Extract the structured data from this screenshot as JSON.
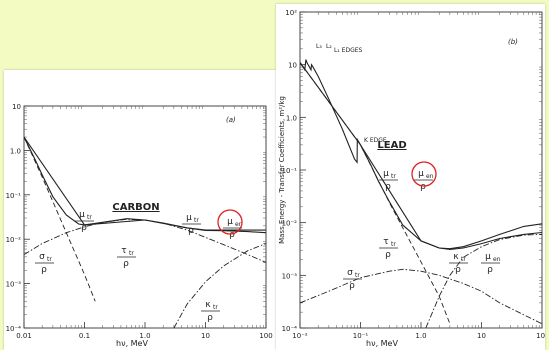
{
  "chart_data": [
    {
      "type": "line",
      "panel_label": "(a)",
      "chart_label": "CARBON",
      "xlabel": "hν, MeV",
      "x_scale": "log",
      "y_scale": "log",
      "xlim": [
        0.01,
        100
      ],
      "ylim": [
        0.0001,
        10
      ],
      "x_ticks": [
        {
          "value": 0.01,
          "label": "0.01"
        },
        {
          "value": 0.1,
          "label": "0.1"
        },
        {
          "value": 1,
          "label": "1.0"
        },
        {
          "value": 10,
          "label": "10"
        },
        {
          "value": 100,
          "label": "100"
        }
      ],
      "y_ticks": [
        {
          "value": 10,
          "label": "10"
        },
        {
          "value": 1,
          "label": "1.0"
        },
        {
          "value": 0.1,
          "label": "10⁻¹"
        },
        {
          "value": 0.01,
          "label": "10⁻²"
        },
        {
          "value": 0.001,
          "label": "10⁻³"
        },
        {
          "value": 0.0001,
          "label": "10⁻⁴"
        }
      ],
      "series": [
        {
          "name": "μtr/ρ",
          "style": "solid",
          "x": [
            0.01,
            0.015,
            0.02,
            0.03,
            0.05,
            0.08,
            0.1,
            0.2,
            0.5,
            1,
            2,
            5,
            10,
            20,
            50,
            100
          ],
          "y": [
            2.0,
            0.65,
            0.28,
            0.09,
            0.035,
            0.022,
            0.021,
            0.024,
            0.029,
            0.027,
            0.023,
            0.018,
            0.016,
            0.016,
            0.016,
            0.016
          ]
        },
        {
          "name": "μen/ρ",
          "style": "solid",
          "x": [
            0.01,
            0.1,
            1,
            5,
            10,
            20,
            50,
            100
          ],
          "y": [
            2.0,
            0.021,
            0.027,
            0.018,
            0.0158,
            0.0155,
            0.0148,
            0.014
          ]
        },
        {
          "name": "τtr/ρ",
          "style": "dashed",
          "x": [
            0.01,
            0.02,
            0.03,
            0.05,
            0.1,
            0.15
          ],
          "y": [
            2.0,
            0.25,
            0.07,
            0.014,
            0.0016,
            0.0004
          ]
        },
        {
          "name": "σtr/ρ",
          "style": "dashdot",
          "x": [
            0.01,
            0.02,
            0.05,
            0.1,
            0.2,
            0.5,
            1,
            2,
            5,
            10,
            20,
            50,
            100
          ],
          "y": [
            0.0045,
            0.008,
            0.014,
            0.019,
            0.024,
            0.028,
            0.027,
            0.023,
            0.016,
            0.011,
            0.0075,
            0.0045,
            0.003
          ]
        },
        {
          "name": "κtr/ρ",
          "style": "dashdot",
          "x": [
            3,
            5,
            10,
            20,
            50,
            100
          ],
          "y": [
            0.0001,
            0.00035,
            0.0011,
            0.0025,
            0.0055,
            0.008
          ]
        }
      ],
      "labels": {
        "mu_tr": {
          "num": "μ",
          "sub": "tr",
          "den": "ρ"
        },
        "mu_tr_right": {
          "num": "μ",
          "sub": "tr",
          "den": "ρ"
        },
        "mu_en": {
          "num": "μ",
          "sub": "en",
          "den": "ρ"
        },
        "tau_tr": {
          "num": "τ",
          "sub": "tr",
          "den": "ρ"
        },
        "sigma_tr": {
          "num": "σ",
          "sub": "tr",
          "den": "ρ"
        },
        "kappa_tr": {
          "num": "κ",
          "sub": "tr",
          "den": "ρ"
        }
      },
      "annotation_color": "#e02020"
    },
    {
      "type": "line",
      "panel_label": "(b)",
      "chart_label": "LEAD",
      "xlabel": "hν, MeV",
      "ylabel": "Mass Energy - Transfer Coefficients, m²/kg",
      "x_scale": "log",
      "y_scale": "log",
      "xlim": [
        0.01,
        100
      ],
      "ylim": [
        0.0001,
        100
      ],
      "x_ticks": [
        {
          "value": 0.01,
          "label": "10⁻²"
        },
        {
          "value": 0.1,
          "label": "10⁻¹"
        },
        {
          "value": 1,
          "label": "1.0"
        },
        {
          "value": 10,
          "label": "10"
        },
        {
          "value": 100,
          "label": "10²"
        }
      ],
      "y_ticks": [
        {
          "value": 100,
          "label": "10²"
        },
        {
          "value": 10,
          "label": "10"
        },
        {
          "value": 1,
          "label": "1.0"
        },
        {
          "value": 0.1,
          "label": "10⁻¹"
        },
        {
          "value": 0.01,
          "label": "10⁻²"
        },
        {
          "value": 0.001,
          "label": "10⁻³"
        },
        {
          "value": 0.0001,
          "label": "10⁻⁴"
        }
      ],
      "series": [
        {
          "name": "μtr/ρ",
          "style": "solid",
          "x": [
            0.01,
            0.012,
            0.0125,
            0.013,
            0.0152,
            0.0155,
            0.016,
            0.02,
            0.03,
            0.05,
            0.08,
            0.088,
            0.0885,
            0.1,
            0.15,
            0.2,
            0.3,
            0.5,
            1,
            2,
            3,
            5,
            10,
            20,
            50,
            100
          ],
          "y": [
            11,
            8,
            12.5,
            11,
            8,
            10,
            9.5,
            6,
            2.2,
            0.6,
            0.16,
            0.14,
            0.38,
            0.3,
            0.12,
            0.06,
            0.025,
            0.009,
            0.0045,
            0.0033,
            0.0032,
            0.0035,
            0.0045,
            0.006,
            0.0085,
            0.0095
          ]
        },
        {
          "name": "μen/ρ",
          "style": "solid",
          "x": [
            0.01,
            0.1,
            1,
            2,
            3,
            5,
            10,
            20,
            50,
            100
          ],
          "y": [
            11,
            0.3,
            0.0045,
            0.0033,
            0.0031,
            0.0033,
            0.004,
            0.005,
            0.006,
            0.0065
          ]
        },
        {
          "name": "τtr/ρ",
          "style": "dashed",
          "x": [
            0.01,
            0.1,
            0.3,
            0.5,
            1,
            2,
            3
          ],
          "y": [
            11,
            0.3,
            0.024,
            0.008,
            0.0018,
            0.0004,
            0.00012
          ]
        },
        {
          "name": "σtr/ρ",
          "style": "dashdot",
          "x": [
            0.01,
            0.03,
            0.1,
            0.3,
            0.5,
            1,
            2,
            5,
            10,
            20,
            100
          ],
          "y": [
            0.0003,
            0.0005,
            0.0009,
            0.0012,
            0.0013,
            0.0012,
            0.001,
            0.0007,
            0.0005,
            0.0003,
            0.00012
          ]
        },
        {
          "name": "κtr/ρ",
          "style": "dashdot",
          "x": [
            1.2,
            2,
            3,
            5,
            10,
            20,
            50,
            100
          ],
          "y": [
            0.0001,
            0.0004,
            0.001,
            0.0022,
            0.0035,
            0.0048,
            0.0058,
            0.006
          ]
        }
      ],
      "edge_labels": [
        "L₃",
        "L₂",
        "L₁ EDGES",
        "K EDGE"
      ],
      "labels": {
        "mu_tr": {
          "num": "μ",
          "sub": "tr",
          "den": "ρ"
        },
        "mu_en": {
          "num": "μ",
          "sub": "en",
          "den": "ρ"
        },
        "tau_tr": {
          "num": "τ",
          "sub": "tr",
          "den": "ρ"
        },
        "sigma_tr": {
          "num": "σ",
          "sub": "tr",
          "den": "ρ"
        },
        "kappa_tr": {
          "num": "κ",
          "sub": "tr",
          "den": "ρ"
        },
        "mu_en_right": {
          "num": "μ",
          "sub": "en",
          "den": "ρ"
        }
      },
      "annotation_color": "#e02020"
    }
  ]
}
